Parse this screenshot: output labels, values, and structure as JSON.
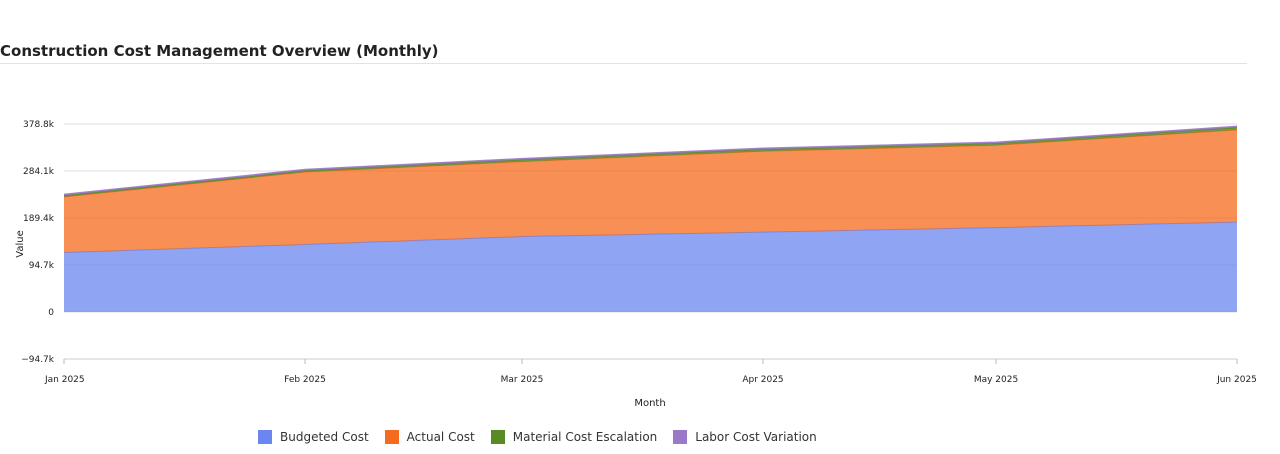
{
  "chart_data": {
    "type": "area",
    "stacked": true,
    "title": "Construction Cost Management Overview (Monthly)",
    "xlabel": "Month",
    "ylabel": "Value",
    "categories": [
      "Jan 2025",
      "Feb 2025",
      "Mar 2025",
      "Apr 2025",
      "May 2025",
      "Jun 2025"
    ],
    "yticks": [
      "−94.7k",
      "0",
      "94.7k",
      "189.4k",
      "284.1k",
      "378.8k"
    ],
    "ylim": [
      -94.7,
      378.8
    ],
    "y_unit": "k",
    "grid": true,
    "legend_position": "bottom-center",
    "series": [
      {
        "name": "Budgeted Cost",
        "color": "#6b86f0",
        "values": [
          120,
          136,
          152,
          161,
          170,
          181
        ]
      },
      {
        "name": "Actual Cost",
        "color": "#f56a1c",
        "values": [
          112,
          146,
          151,
          163,
          166,
          186
        ]
      },
      {
        "name": "Material Cost Escalation",
        "color": "#5a8a26",
        "values": [
          3,
          3,
          4,
          4,
          4,
          5
        ]
      },
      {
        "name": "Labor Cost Variation",
        "color": "#9b78c8",
        "values": [
          2,
          2,
          2,
          2,
          2,
          2
        ]
      }
    ]
  }
}
